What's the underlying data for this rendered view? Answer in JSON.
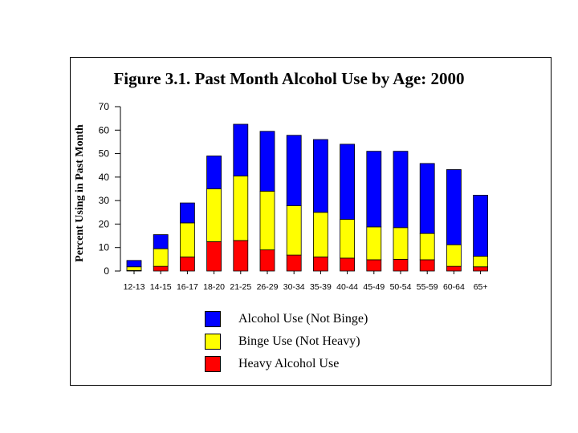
{
  "chart_data": {
    "type": "bar",
    "stacked": true,
    "title": "Figure 3.1.  Past Month Alcohol Use by Age: 2000",
    "xlabel": "",
    "ylabel": "Percent Using in Past Month",
    "ylim": [
      0,
      70
    ],
    "yticks": [
      0,
      10,
      20,
      30,
      40,
      50,
      60,
      70
    ],
    "categories": [
      "12-13",
      "14-15",
      "16-17",
      "18-20",
      "21-25",
      "26-29",
      "30-34",
      "35-39",
      "40-44",
      "45-49",
      "50-54",
      "55-59",
      "60-64",
      "65+"
    ],
    "series": [
      {
        "name": "Heavy Alcohol Use",
        "color": "#ff0000",
        "values": [
          0.2,
          2.0,
          6.0,
          12.5,
          13.0,
          9.0,
          6.8,
          6.0,
          5.5,
          4.8,
          5.0,
          4.8,
          2.0,
          1.8
        ]
      },
      {
        "name": "Binge Use (Not Heavy)",
        "color": "#ffff00",
        "values": [
          1.6,
          7.5,
          14.5,
          22.5,
          27.5,
          25.0,
          21.0,
          19.0,
          16.5,
          14.0,
          13.5,
          11.2,
          9.2,
          4.5
        ]
      },
      {
        "name": "Alcohol Use (Not Binge)",
        "color": "#0000ff",
        "values": [
          2.7,
          6.0,
          8.5,
          14.0,
          22.0,
          25.5,
          30.0,
          31.0,
          32.0,
          32.2,
          32.5,
          29.8,
          32.0,
          26.0
        ]
      }
    ],
    "legend_order": [
      "Alcohol Use (Not Binge)",
      "Binge Use (Not Heavy)",
      "Heavy Alcohol Use"
    ],
    "legend_position": "bottom-center"
  }
}
